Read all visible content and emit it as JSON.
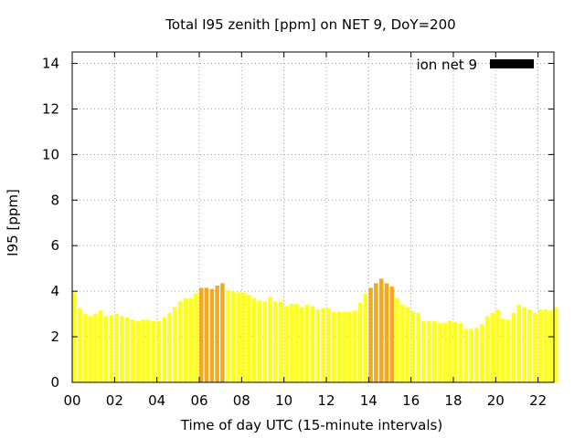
{
  "chart_data": {
    "type": "bar",
    "title": "Total I95 zenith [ppm] on NET 9, DoY=200",
    "xlabel": "Time of day UTC (15-minute intervals)",
    "ylabel": "I95 [ppm]",
    "xlim": [
      0,
      22.75
    ],
    "ylim": [
      0,
      14.5
    ],
    "x_tick_values": [
      0,
      2,
      4,
      6,
      8,
      10,
      12,
      14,
      16,
      18,
      20,
      22
    ],
    "x_tick_labels": [
      "00",
      "02",
      "04",
      "06",
      "08",
      "10",
      "12",
      "14",
      "16",
      "18",
      "20",
      "22"
    ],
    "y_tick_values": [
      0,
      2,
      4,
      6,
      8,
      10,
      12,
      14
    ],
    "y_tick_labels": [
      "0",
      "2",
      "4",
      "6",
      "8",
      "10",
      "12",
      "14"
    ],
    "grid": true,
    "legend": {
      "label": "ion net 9",
      "position": "top-right",
      "color": "#000000"
    },
    "colors": {
      "normal": "#ffff1a",
      "elevated": "#f5a81a"
    },
    "interval_hours": 0.25,
    "x_start": 0,
    "values": [
      3.95,
      3.25,
      3.0,
      2.9,
      3.0,
      3.15,
      2.9,
      2.95,
      3.0,
      2.9,
      2.85,
      2.75,
      2.7,
      2.75,
      2.75,
      2.7,
      2.7,
      2.85,
      3.05,
      3.3,
      3.55,
      3.7,
      3.7,
      3.9,
      4.15,
      4.15,
      4.1,
      4.25,
      4.35,
      4.05,
      4.0,
      3.95,
      3.95,
      3.85,
      3.7,
      3.6,
      3.55,
      3.75,
      3.55,
      3.55,
      3.35,
      3.45,
      3.45,
      3.3,
      3.4,
      3.35,
      3.2,
      3.25,
      3.25,
      3.1,
      3.1,
      3.1,
      3.1,
      3.15,
      3.5,
      3.9,
      4.15,
      4.35,
      4.55,
      4.35,
      4.2,
      3.7,
      3.4,
      3.3,
      3.1,
      3.05,
      2.7,
      2.7,
      2.7,
      2.6,
      2.6,
      2.7,
      2.65,
      2.6,
      2.35,
      2.35,
      2.4,
      2.55,
      2.9,
      3.05,
      3.2,
      2.8,
      2.75,
      3.05,
      3.4,
      3.3,
      3.2,
      3.05,
      3.2,
      3.2,
      3.15,
      3.3
    ],
    "elevated_ranges": [
      [
        6.0,
        7.25
      ],
      [
        14.0,
        15.25
      ]
    ]
  }
}
